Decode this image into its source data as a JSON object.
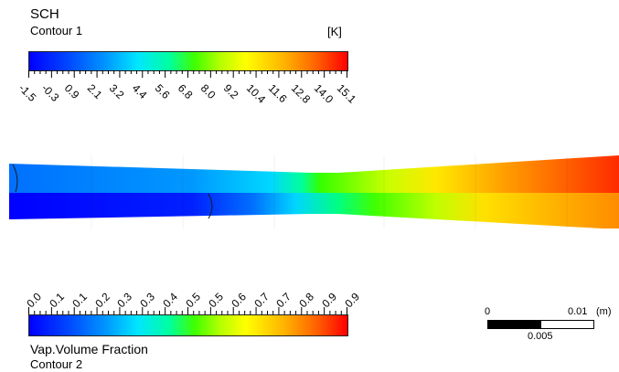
{
  "legend_top": {
    "title": "SCH",
    "subtitle": "Contour 1",
    "unit": "[K]",
    "tick_labels": [
      "-1.5",
      "-0.3",
      "0.9",
      "2.1",
      "3.2",
      "4.4",
      "5.6",
      "6.8",
      "8.0",
      "9.2",
      "10.4",
      "11.6",
      "12.8",
      "14.0",
      "15.1"
    ]
  },
  "legend_bottom": {
    "title": "Vap.Volume Fraction",
    "subtitle": "Contour 2",
    "tick_labels": [
      "0.0",
      "0.1",
      "0.1",
      "0.2",
      "0.3",
      "0.3",
      "0.4",
      "0.5",
      "0.5",
      "0.6",
      "0.7",
      "0.7",
      "0.8",
      "0.9",
      "0.9"
    ]
  },
  "scale_bar": {
    "start": "0",
    "end": "0.01",
    "unit": "(m)",
    "mid": "0.005"
  },
  "colors": {
    "blue": "#0000ff",
    "cyan": "#00e6ff",
    "green": "#40ff00",
    "yellow": "#ffff00",
    "orange": "#ff8c00",
    "red": "#ff0000"
  }
}
